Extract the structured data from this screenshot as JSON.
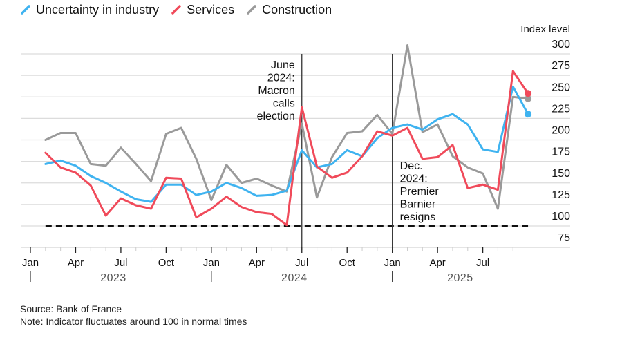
{
  "chart_data": {
    "type": "line",
    "title": "",
    "ylabel": "Index level",
    "xlabel": "",
    "ylim": [
      75,
      300
    ],
    "yticks": [
      300,
      275,
      250,
      225,
      200,
      175,
      150,
      125,
      100,
      75
    ],
    "grid": true,
    "legend_position": "top-left",
    "x_start": "2023-02",
    "x": [
      "2023-02",
      "2023-03",
      "2023-04",
      "2023-05",
      "2023-06",
      "2023-07",
      "2023-08",
      "2023-09",
      "2023-10",
      "2023-11",
      "2023-12",
      "2024-01",
      "2024-02",
      "2024-03",
      "2024-04",
      "2024-05",
      "2024-06",
      "2024-07",
      "2024-08",
      "2024-09",
      "2024-10",
      "2024-11",
      "2024-12",
      "2025-01",
      "2025-02",
      "2025-03",
      "2025-04",
      "2025-05",
      "2025-06",
      "2025-07",
      "2025-08",
      "2025-09",
      "2025-10"
    ],
    "month_ticks": [
      {
        "label": "Jan",
        "month": "2023-01"
      },
      {
        "label": "Apr",
        "month": "2023-04"
      },
      {
        "label": "Jul",
        "month": "2023-07"
      },
      {
        "label": "Oct",
        "month": "2023-10"
      },
      {
        "label": "Jan",
        "month": "2024-01"
      },
      {
        "label": "Apr",
        "month": "2024-04"
      },
      {
        "label": "Jul",
        "month": "2024-07"
      },
      {
        "label": "Oct",
        "month": "2024-10"
      },
      {
        "label": "Jan",
        "month": "2025-01"
      },
      {
        "label": "Apr",
        "month": "2025-04"
      },
      {
        "label": "Jul",
        "month": "2025-07"
      }
    ],
    "year_labels": [
      {
        "label": "2023",
        "start": "2023-01",
        "end": "2023-12"
      },
      {
        "label": "2024",
        "start": "2024-01",
        "end": "2024-12"
      },
      {
        "label": "2025",
        "start": "2025-01",
        "end": "2025-10"
      }
    ],
    "series": [
      {
        "name": "Uncertainty in industry",
        "color": "#3fb3f0",
        "values": [
          172,
          176,
          170,
          158,
          150,
          140,
          131,
          128,
          148,
          148,
          136,
          140,
          150,
          144,
          135,
          136,
          141,
          188,
          168,
          172,
          188,
          181,
          202,
          214,
          218,
          212,
          224,
          230,
          218,
          189,
          186,
          262,
          230
        ]
      },
      {
        "name": "Services",
        "color": "#f04a5a",
        "values": [
          185,
          168,
          162,
          147,
          112,
          132,
          124,
          120,
          156,
          155,
          110,
          120,
          134,
          122,
          116,
          114,
          101,
          238,
          169,
          156,
          162,
          181,
          210,
          205,
          214,
          178,
          180,
          194,
          144,
          148,
          142,
          280,
          254
        ]
      },
      {
        "name": "Construction",
        "color": "#9a9a9a",
        "values": [
          200,
          208,
          208,
          172,
          170,
          191,
          172,
          152,
          207,
          214,
          178,
          130,
          171,
          150,
          155,
          147,
          140,
          219,
          133,
          180,
          208,
          210,
          229,
          207,
          310,
          209,
          218,
          181,
          168,
          161,
          120,
          250,
          248
        ]
      }
    ],
    "reference_line": {
      "value": 100,
      "style": "dashed",
      "color": "#111111",
      "from": "2023-02",
      "to": "2025-10"
    },
    "annotations": [
      {
        "month": "2024-07",
        "lines": [
          "June",
          "2024:",
          "Macron",
          "calls",
          "election"
        ],
        "align": "right"
      },
      {
        "month": "2025-01",
        "lines": [
          "Dec.",
          "2024:",
          "Premier",
          "Barnier",
          "resigns"
        ],
        "align": "left"
      }
    ]
  },
  "footer": {
    "source": "Source: Bank of France",
    "note": "Note: Indicator fluctuates around 100 in normal times"
  }
}
